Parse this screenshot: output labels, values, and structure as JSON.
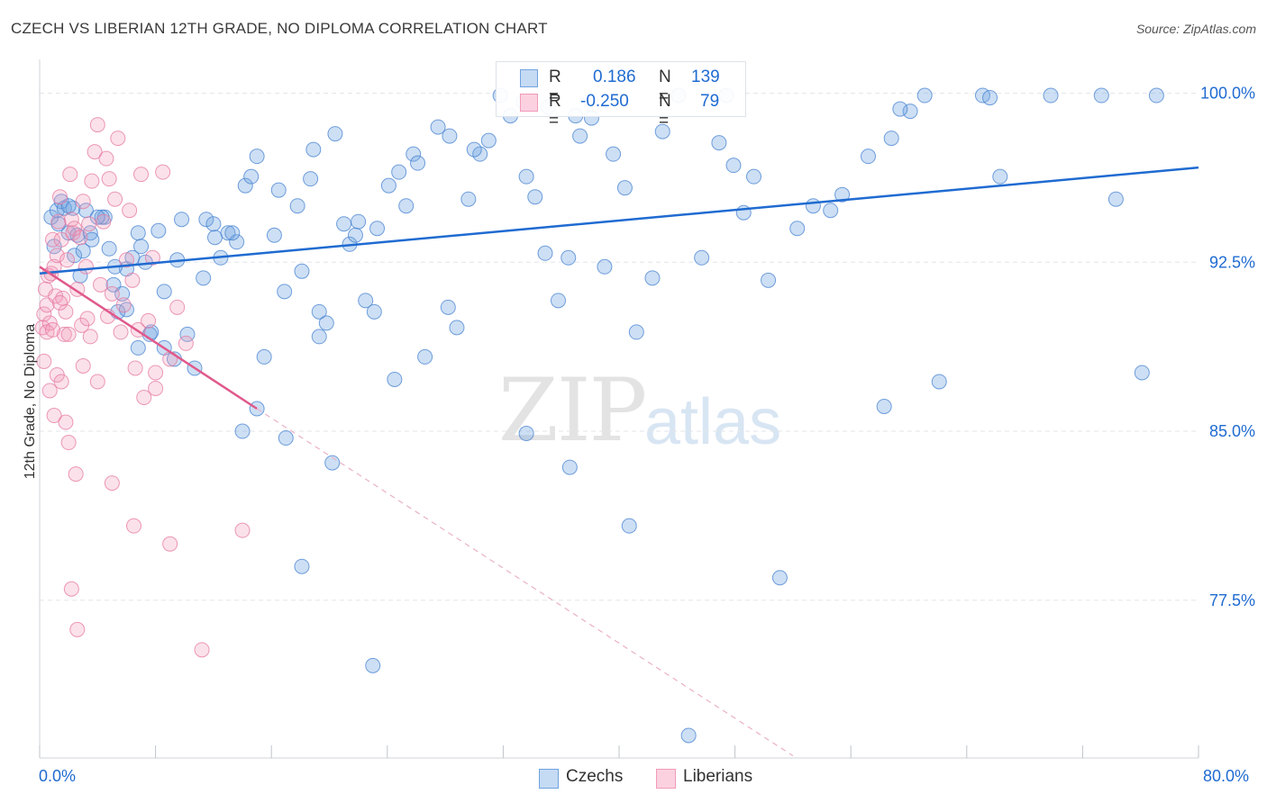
{
  "title": "CZECH VS LIBERIAN 12TH GRADE, NO DIPLOMA CORRELATION CHART",
  "source": "Source: ZipAtlas.com",
  "watermark": {
    "zip": "ZIP",
    "atlas": "atlas"
  },
  "stats": [
    {
      "r_label": "R =",
      "r_value": "0.186",
      "n_label": "N =",
      "n_value": "139"
    },
    {
      "r_label": "R =",
      "r_value": "-0.250",
      "n_label": "N =",
      "n_value": "79"
    }
  ],
  "colors": {
    "czechs": "#6fa3e0",
    "liberians": "#f29ab9",
    "czechs_line": "#1f6bd1",
    "liberians_line": "#e0598b",
    "axis_text": "#1f6bd1"
  },
  "chart_data": {
    "type": "scatter",
    "title": "CZECH VS LIBERIAN 12TH GRADE, NO DIPLOMA CORRELATION CHART",
    "xlabel": "",
    "ylabel": "12th Grade, No Diploma",
    "xlim": [
      0,
      80
    ],
    "ylim": [
      70.5,
      101.5
    ],
    "x_tick_labels": [
      "0.0%",
      "80.0%"
    ],
    "y_ticks": [
      77.5,
      85.0,
      92.5,
      100.0
    ],
    "y_tick_labels": [
      "77.5%",
      "85.0%",
      "92.5%",
      "100.0%"
    ],
    "grid": true,
    "legend_position": "bottom-center",
    "series": [
      {
        "name": "Czechs",
        "r": 0.186,
        "n": 139,
        "trend": {
          "x": [
            0,
            80
          ],
          "y": [
            92.0,
            96.7
          ]
        },
        "points": [
          [
            0.8,
            94.5
          ],
          [
            1.2,
            94.8
          ],
          [
            1.5,
            95.2
          ],
          [
            1.7,
            94.9
          ],
          [
            2.0,
            93.8
          ],
          [
            2.3,
            94.9
          ],
          [
            2.6,
            93.7
          ],
          [
            2.4,
            92.8
          ],
          [
            1.0,
            93.2
          ],
          [
            3.2,
            94.8
          ],
          [
            3.5,
            93.8
          ],
          [
            4.5,
            94.5
          ],
          [
            4.8,
            93.1
          ],
          [
            5.1,
            91.5
          ],
          [
            5.4,
            90.3
          ],
          [
            5.7,
            91.1
          ],
          [
            6.0,
            92.2
          ],
          [
            6.4,
            92.7
          ],
          [
            6.8,
            93.8
          ],
          [
            7.0,
            93.2
          ],
          [
            7.3,
            92.5
          ],
          [
            7.6,
            89.3
          ],
          [
            8.2,
            93.9
          ],
          [
            8.6,
            88.7
          ],
          [
            9.3,
            88.2
          ],
          [
            9.8,
            94.4
          ],
          [
            10.7,
            87.8
          ],
          [
            11.5,
            94.4
          ],
          [
            12.1,
            93.6
          ],
          [
            12.5,
            92.7
          ],
          [
            13.0,
            93.8
          ],
          [
            13.6,
            93.4
          ],
          [
            14.2,
            95.9
          ],
          [
            14.6,
            96.3
          ],
          [
            15.0,
            97.2
          ],
          [
            15.5,
            88.3
          ],
          [
            16.2,
            93.7
          ],
          [
            16.9,
            91.2
          ],
          [
            17.8,
            95.0
          ],
          [
            18.1,
            92.1
          ],
          [
            18.7,
            96.2
          ],
          [
            18.9,
            97.5
          ],
          [
            19.3,
            90.3
          ],
          [
            19.8,
            89.8
          ],
          [
            20.4,
            98.2
          ],
          [
            21.0,
            94.2
          ],
          [
            21.4,
            93.3
          ],
          [
            22.0,
            94.3
          ],
          [
            22.5,
            90.8
          ],
          [
            23.3,
            94.0
          ],
          [
            24.1,
            95.9
          ],
          [
            24.8,
            96.5
          ],
          [
            25.3,
            95.0
          ],
          [
            25.8,
            97.3
          ],
          [
            26.6,
            88.3
          ],
          [
            27.5,
            98.5
          ],
          [
            28.2,
            90.5
          ],
          [
            28.8,
            89.6
          ],
          [
            29.6,
            95.3
          ],
          [
            30.4,
            97.3
          ],
          [
            31.0,
            97.9
          ],
          [
            31.8,
            99.9
          ],
          [
            32.5,
            99.0
          ],
          [
            33.6,
            96.3
          ],
          [
            34.2,
            95.4
          ],
          [
            34.9,
            92.9
          ],
          [
            35.8,
            90.8
          ],
          [
            36.5,
            92.7
          ],
          [
            37.3,
            98.1
          ],
          [
            38.1,
            98.9
          ],
          [
            39.0,
            92.3
          ],
          [
            39.6,
            97.3
          ],
          [
            40.4,
            95.8
          ],
          [
            41.2,
            89.4
          ],
          [
            42.3,
            91.8
          ],
          [
            43.0,
            98.3
          ],
          [
            44.1,
            99.9
          ],
          [
            45.7,
            92.7
          ],
          [
            46.9,
            97.8
          ],
          [
            47.9,
            96.8
          ],
          [
            48.6,
            94.7
          ],
          [
            49.3,
            96.3
          ],
          [
            50.3,
            91.7
          ],
          [
            51.1,
            78.5
          ],
          [
            52.3,
            94.0
          ],
          [
            53.4,
            95.0
          ],
          [
            54.6,
            94.8
          ],
          [
            55.4,
            95.5
          ],
          [
            57.2,
            97.2
          ],
          [
            58.8,
            98.0
          ],
          [
            60.1,
            99.2
          ],
          [
            61.1,
            99.9
          ],
          [
            62.1,
            87.2
          ],
          [
            66.3,
            96.3
          ],
          [
            65.1,
            99.9
          ],
          [
            69.8,
            99.9
          ],
          [
            73.3,
            99.9
          ],
          [
            76.1,
            87.6
          ],
          [
            77.1,
            99.9
          ],
          [
            74.3,
            95.3
          ],
          [
            65.6,
            99.8
          ],
          [
            59.4,
            99.3
          ],
          [
            58.3,
            86.1
          ],
          [
            47.4,
            99.9
          ],
          [
            37.0,
            99.0
          ],
          [
            35.1,
            99.4
          ],
          [
            33.4,
            99.6
          ],
          [
            30.0,
            97.5
          ],
          [
            28.3,
            98.1
          ],
          [
            26.1,
            96.9
          ],
          [
            24.5,
            87.3
          ],
          [
            23.1,
            90.3
          ],
          [
            21.8,
            93.7
          ],
          [
            20.2,
            83.6
          ],
          [
            19.3,
            89.2
          ],
          [
            17.0,
            84.7
          ],
          [
            16.5,
            95.7
          ],
          [
            15.0,
            86.0
          ],
          [
            14.0,
            85.0
          ],
          [
            13.3,
            93.8
          ],
          [
            12.0,
            94.2
          ],
          [
            11.3,
            91.8
          ],
          [
            10.2,
            89.3
          ],
          [
            9.5,
            92.6
          ],
          [
            8.6,
            91.2
          ],
          [
            7.7,
            89.4
          ],
          [
            6.8,
            88.7
          ],
          [
            6.0,
            90.4
          ],
          [
            5.2,
            92.3
          ],
          [
            4.3,
            94.5
          ],
          [
            3.6,
            93.5
          ],
          [
            3.0,
            93.0
          ],
          [
            1.3,
            94.2
          ],
          [
            2.0,
            95.0
          ],
          [
            2.8,
            91.9
          ],
          [
            4.0,
            94.5
          ],
          [
            18.1,
            79.0
          ],
          [
            23.0,
            74.6
          ],
          [
            33.6,
            84.9
          ],
          [
            36.6,
            83.4
          ],
          [
            40.7,
            80.8
          ],
          [
            44.8,
            71.5
          ]
        ]
      },
      {
        "name": "Liberians",
        "r": -0.25,
        "n": 79,
        "trend": {
          "x": [
            0,
            15
          ],
          "y": [
            92.3,
            86.0
          ]
        },
        "trend_dashed": {
          "x": [
            15,
            52
          ],
          "y": [
            86.0,
            70.6
          ]
        },
        "points": [
          [
            0.2,
            89.6
          ],
          [
            0.3,
            90.2
          ],
          [
            0.4,
            91.3
          ],
          [
            0.5,
            90.6
          ],
          [
            0.6,
            91.9
          ],
          [
            0.7,
            89.8
          ],
          [
            0.8,
            92.0
          ],
          [
            0.9,
            93.5
          ],
          [
            1.0,
            92.3
          ],
          [
            1.1,
            91.0
          ],
          [
            1.2,
            92.8
          ],
          [
            1.3,
            94.3
          ],
          [
            1.4,
            95.4
          ],
          [
            1.5,
            93.5
          ],
          [
            1.6,
            90.9
          ],
          [
            1.7,
            89.3
          ],
          [
            1.8,
            90.3
          ],
          [
            1.9,
            92.6
          ],
          [
            2.0,
            89.3
          ],
          [
            2.1,
            96.4
          ],
          [
            2.2,
            94.4
          ],
          [
            2.3,
            93.8
          ],
          [
            2.4,
            94.0
          ],
          [
            2.6,
            91.3
          ],
          [
            2.8,
            93.6
          ],
          [
            2.9,
            89.7
          ],
          [
            3.0,
            95.2
          ],
          [
            3.2,
            92.3
          ],
          [
            3.4,
            94.2
          ],
          [
            3.6,
            96.1
          ],
          [
            3.8,
            97.4
          ],
          [
            4.0,
            98.6
          ],
          [
            4.2,
            91.5
          ],
          [
            4.4,
            94.3
          ],
          [
            4.6,
            97.1
          ],
          [
            4.8,
            96.2
          ],
          [
            5.0,
            91.1
          ],
          [
            5.2,
            95.3
          ],
          [
            5.4,
            98.0
          ],
          [
            5.6,
            89.4
          ],
          [
            5.8,
            90.6
          ],
          [
            6.0,
            92.6
          ],
          [
            6.2,
            94.8
          ],
          [
            6.4,
            91.7
          ],
          [
            6.6,
            87.8
          ],
          [
            6.8,
            89.5
          ],
          [
            7.0,
            96.4
          ],
          [
            7.2,
            86.5
          ],
          [
            7.5,
            89.9
          ],
          [
            7.8,
            92.7
          ],
          [
            8.0,
            86.9
          ],
          [
            8.5,
            96.5
          ],
          [
            9.0,
            88.2
          ],
          [
            9.5,
            90.5
          ],
          [
            10.1,
            88.9
          ],
          [
            0.3,
            88.1
          ],
          [
            0.5,
            89.4
          ],
          [
            0.7,
            86.8
          ],
          [
            1.0,
            85.7
          ],
          [
            1.2,
            87.5
          ],
          [
            1.5,
            87.2
          ],
          [
            1.8,
            85.4
          ],
          [
            2.0,
            84.5
          ],
          [
            2.5,
            83.1
          ],
          [
            3.0,
            87.9
          ],
          [
            3.5,
            89.2
          ],
          [
            4.0,
            87.2
          ],
          [
            5.0,
            82.7
          ],
          [
            6.5,
            80.8
          ],
          [
            8.0,
            87.6
          ],
          [
            9.0,
            80.0
          ],
          [
            11.2,
            75.3
          ],
          [
            14.0,
            80.6
          ],
          [
            2.2,
            78.0
          ],
          [
            2.6,
            76.2
          ],
          [
            1.4,
            90.7
          ],
          [
            3.3,
            90.0
          ],
          [
            4.7,
            90.1
          ],
          [
            0.9,
            89.5
          ]
        ]
      }
    ]
  },
  "legend": [
    {
      "label": "Czechs",
      "color": "#6fa3e0"
    },
    {
      "label": "Liberians",
      "color": "#f29ab9"
    }
  ]
}
